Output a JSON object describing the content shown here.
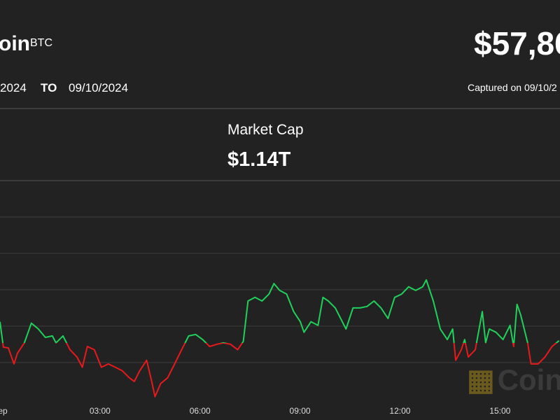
{
  "header": {
    "name": "oin",
    "symbol": "BTC",
    "price": "$57,86",
    "from_date": "2024",
    "to_word": "TO",
    "to_date": "09/10/2024",
    "captured": "Captured on 09/10/2",
    "stat_label": "Market Cap",
    "stat_value": "$1.14T"
  },
  "chart_data": {
    "type": "line",
    "x": [
      0,
      0.1,
      0.25,
      0.42,
      0.52,
      0.73,
      0.94,
      1.15,
      1.36,
      1.57,
      1.68,
      1.89,
      2.1,
      2.31,
      2.47,
      2.62,
      2.83,
      3.04,
      3.25,
      3.46,
      3.67,
      3.88,
      4.03,
      4.19,
      4.4,
      4.55,
      4.65,
      4.82,
      5.03,
      5.24,
      5.45,
      5.66,
      5.87,
      6.08,
      6.29,
      6.5,
      6.71,
      6.92,
      7.13,
      7.3,
      7.44,
      7.65,
      7.86,
      8.07,
      8.22,
      8.39,
      8.6,
      8.81,
      9.01,
      9.12,
      9.33,
      9.54,
      9.69,
      9.85,
      10.06,
      10.27,
      10.38,
      10.59,
      10.8,
      11.01,
      11.22,
      11.43,
      11.64,
      11.84,
      12.05,
      12.26,
      12.47,
      12.68,
      12.79,
      13,
      13.21,
      13.42,
      13.58,
      13.67,
      13.84,
      13.94,
      14.05,
      14.26,
      14.47,
      14.57,
      14.68,
      14.88,
      15.09,
      15.3,
      15.41,
      15.51,
      15.62,
      15.83,
      15.93,
      16.14,
      16.35,
      16.56,
      16.77
    ],
    "values": [
      56120,
      55420,
      55400,
      54960,
      55250,
      55540,
      56080,
      55920,
      55690,
      55730,
      55540,
      55730,
      55350,
      55150,
      54870,
      55440,
      55350,
      54870,
      54960,
      54870,
      54770,
      54580,
      54480,
      54770,
      55060,
      54480,
      54060,
      54420,
      54580,
      54960,
      55350,
      55730,
      55770,
      55630,
      55440,
      55500,
      55540,
      55500,
      55350,
      55580,
      56690,
      56790,
      56690,
      56880,
      57170,
      56980,
      56880,
      56400,
      56120,
      55830,
      56120,
      56020,
      56790,
      56690,
      56500,
      56120,
      55920,
      56500,
      56500,
      56540,
      56690,
      56500,
      56210,
      56790,
      56880,
      57080,
      56980,
      57080,
      57270,
      56690,
      55920,
      55630,
      55920,
      55060,
      55350,
      55630,
      55150,
      55350,
      56400,
      55540,
      55920,
      55830,
      55630,
      56020,
      55440,
      56600,
      56310,
      55540,
      54960,
      54960,
      55150,
      55440,
      55600
    ],
    "xlim": [
      0,
      16.8
    ],
    "xticks": [
      {
        "value": 0,
        "label": "Sep"
      },
      {
        "value": 3,
        "label": "03:00"
      },
      {
        "value": 6,
        "label": "06:00"
      },
      {
        "value": 9,
        "label": "09:00"
      },
      {
        "value": 12,
        "label": "12:00"
      },
      {
        "value": 15,
        "label": "15:00"
      }
    ],
    "ylim": [
      53900,
      60000
    ],
    "gridlines": [
      55000,
      56000,
      57000,
      58000,
      59000
    ],
    "reference_value": 55540,
    "up_color": "#1fd15a",
    "down_color": "#e8191c",
    "watermark": "Coin"
  }
}
